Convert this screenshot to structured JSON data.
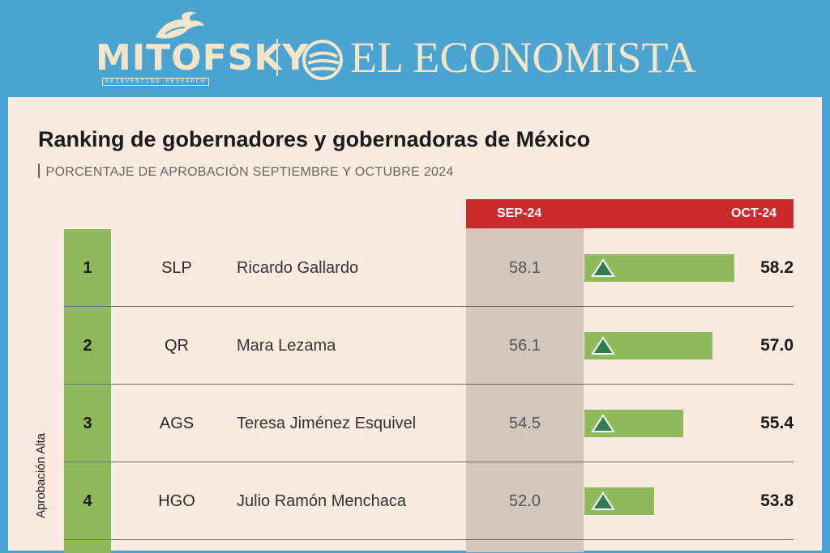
{
  "brands": {
    "left": "MITOFSKY",
    "left_tagline": "REINVENTING RESEARCH",
    "right": "EL ECONOMISTA"
  },
  "colors": {
    "header_bg": "#4aa3d1",
    "panel_bg": "#fbeae0",
    "accent_red": "#cc2a2c",
    "bar_green": "#8fba5c",
    "sep_column": "#d2c6bd",
    "up_arrow": "#2f7d4c"
  },
  "chart_data": {
    "type": "bar",
    "title": "Ranking de gobernadores y gobernadoras de México",
    "subtitle": "PORCENTAJE DE APROBACIÓN SEPTIEMBRE Y OCTUBRE 2024",
    "group_label": "Aprobación Alta",
    "series": [
      {
        "name": "SEP-24",
        "values": [
          58.1,
          56.1,
          54.5,
          52.0
        ]
      },
      {
        "name": "OCT-24",
        "values": [
          58.2,
          57.0,
          55.4,
          53.8
        ]
      }
    ],
    "rows": [
      {
        "rank": "1",
        "state": "SLP",
        "name": "Ricardo Gallardo",
        "sep": "58.1",
        "oct": "58.2",
        "oct_value": 58.2,
        "trend": "up"
      },
      {
        "rank": "2",
        "state": "QR",
        "name": "Mara Lezama",
        "sep": "56.1",
        "oct": "57.0",
        "oct_value": 57.0,
        "trend": "up"
      },
      {
        "rank": "3",
        "state": "AGS",
        "name": "Teresa Jiménez Esquivel",
        "sep": "54.5",
        "oct": "55.4",
        "oct_value": 55.4,
        "trend": "up"
      },
      {
        "rank": "4",
        "state": "HGO",
        "name": "Julio Ramón Menchaca",
        "sep": "52.0",
        "oct": "53.8",
        "oct_value": 53.8,
        "trend": "up"
      }
    ]
  }
}
